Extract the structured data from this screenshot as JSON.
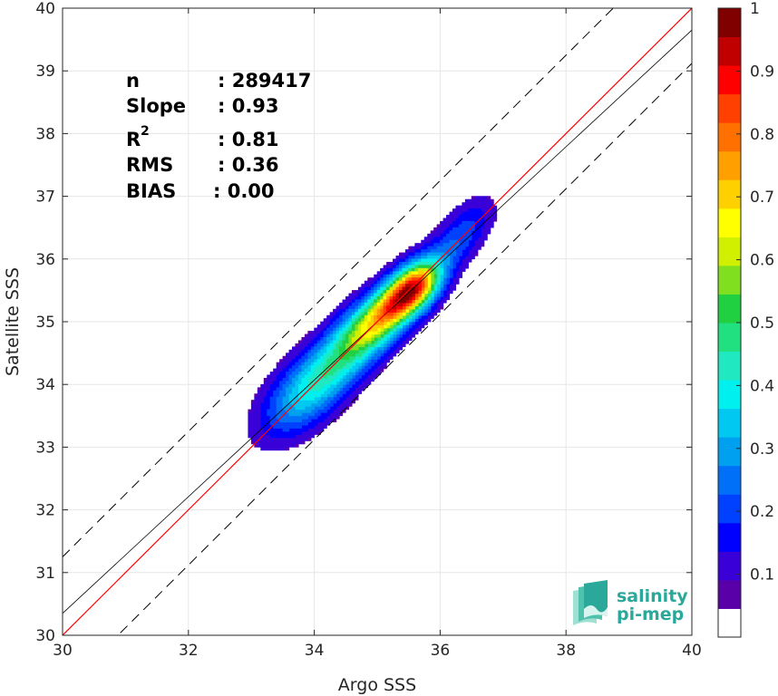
{
  "chart_data": {
    "type": "heatmap",
    "subtype": "density-contour-scatter",
    "xlabel": "Argo SSS",
    "ylabel": "Satellite SSS",
    "xlim": [
      30,
      40
    ],
    "ylim": [
      30,
      40
    ],
    "xticks": [
      30,
      32,
      34,
      36,
      38,
      40
    ],
    "yticks": [
      30,
      31,
      32,
      33,
      34,
      35,
      36,
      37,
      38,
      39,
      40
    ],
    "grid": true,
    "stats": {
      "n_label": "n",
      "n_value": ": 289417",
      "slope_label": "Slope",
      "slope_value": ": 0.93",
      "r2_label": "R",
      "r2_sup": "2",
      "r2_value": ": 0.81",
      "rms_label": "RMS",
      "rms_value": ": 0.36",
      "bias_label": "BIAS",
      "bias_value": ": 0.00"
    },
    "reference_lines": {
      "identity": {
        "slope": 1.0,
        "intercept": 0.0,
        "color": "#ff0000"
      },
      "regression": {
        "slope": 0.93,
        "at_x30": 30.35,
        "color": "#000000"
      },
      "upper_bound": {
        "at_x30": 31.25,
        "slope": 1.0,
        "dashed": true
      },
      "lower_bound": {
        "at_x30": 29.12,
        "slope": 1.0,
        "dashed": true
      }
    },
    "density_ridge": [
      [
        33.6,
        33.6
      ],
      [
        34.0,
        34.0
      ],
      [
        34.5,
        34.5
      ],
      [
        35.0,
        35.05
      ],
      [
        35.5,
        35.45
      ],
      [
        36.0,
        35.95
      ],
      [
        36.6,
        36.75
      ]
    ],
    "density_peak": {
      "x": 35.5,
      "y": 35.4,
      "value": 1.0
    },
    "contour_levels": [
      0.05,
      0.1,
      0.15,
      0.2,
      0.25,
      0.3,
      0.35,
      0.4,
      0.45,
      0.5,
      0.55,
      0.6,
      0.65,
      0.7,
      0.75,
      0.8,
      0.85,
      0.9,
      0.95
    ],
    "colorbar": {
      "ticks": [
        "0.1",
        "0.2",
        "0.3",
        "0.4",
        "0.5",
        "0.6",
        "0.7",
        "0.8",
        "0.9",
        "1"
      ],
      "tick_values": [
        0.1,
        0.2,
        0.3,
        0.4,
        0.5,
        0.6,
        0.7,
        0.8,
        0.9,
        1.0
      ],
      "range": [
        0,
        1
      ],
      "bottom_bin_color": "#ffffff",
      "colors": [
        "#ffffff",
        "#5a00a8",
        "#3a00d8",
        "#0000ff",
        "#0040ff",
        "#0070f8",
        "#00a0f0",
        "#00c8f0",
        "#00f0f0",
        "#20e8c0",
        "#20e080",
        "#20d040",
        "#80e020",
        "#d0f000",
        "#ffff00",
        "#ffd000",
        "#ffa000",
        "#ff7000",
        "#ff4000",
        "#ff0000",
        "#c00000",
        "#800000"
      ]
    }
  },
  "logo": {
    "line1": "salinity",
    "line2": "pi-mep",
    "color": "#2aa89a"
  }
}
